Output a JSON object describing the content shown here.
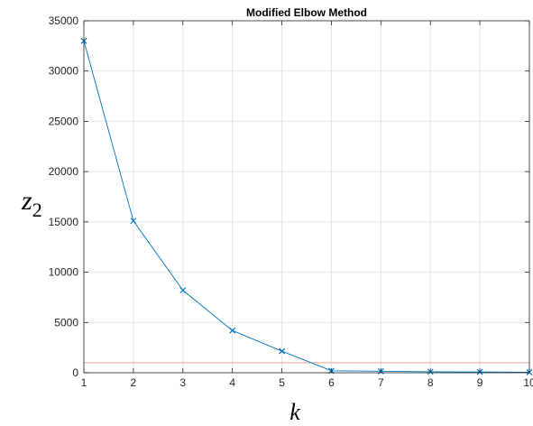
{
  "chart_data": {
    "type": "line",
    "title": "Modified Elbow Method",
    "xlabel": "k",
    "ylabel_base": "z",
    "ylabel_sub": "2",
    "xlim": [
      1,
      10
    ],
    "ylim": [
      0,
      35000
    ],
    "xticks": [
      1,
      2,
      3,
      4,
      5,
      6,
      7,
      8,
      9,
      10
    ],
    "yticks": [
      0,
      5000,
      10000,
      15000,
      20000,
      25000,
      30000,
      35000
    ],
    "grid": true,
    "series": [
      {
        "x": [
          1,
          2,
          3,
          4,
          5,
          6,
          7,
          8,
          9,
          10
        ],
        "values": [
          33000,
          15100,
          8200,
          4200,
          2150,
          200,
          150,
          100,
          80,
          50
        ],
        "color": "#0072BD",
        "marker": "x"
      }
    ],
    "threshold": {
      "value": 1000,
      "color": "#F4A090"
    }
  }
}
